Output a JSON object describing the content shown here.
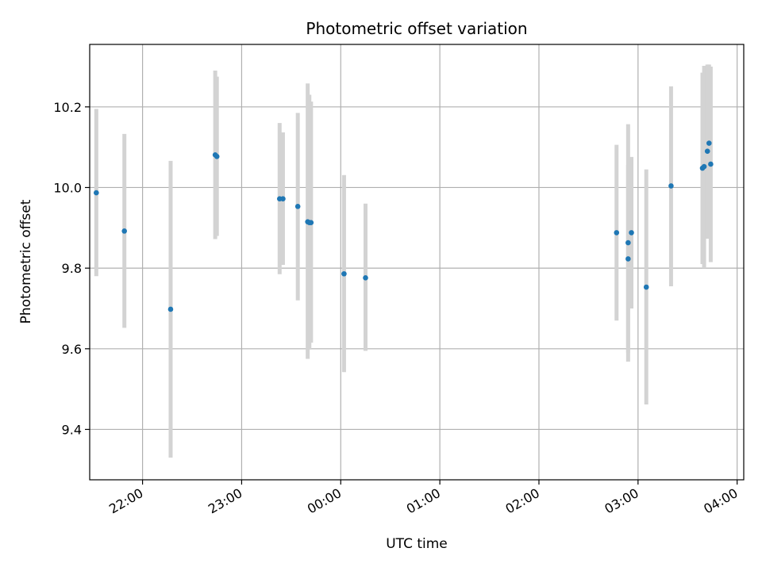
{
  "chart_data": {
    "type": "scatter",
    "title": "Photometric offset variation",
    "xlabel": "UTC time",
    "ylabel": "Photometric offset",
    "xlim": [
      "21:28",
      "04:04"
    ],
    "ylim": [
      9.275,
      10.355
    ],
    "grid": true,
    "colors": {
      "point": "#1f77b4",
      "errorbar": "#d3d3d3",
      "grid": "#b0b0b0"
    },
    "x_ticks": [
      "22:00",
      "23:00",
      "00:00",
      "01:00",
      "02:00",
      "03:00",
      "04:00"
    ],
    "y_ticks": [
      "9.4",
      "9.6",
      "9.8",
      "10.0",
      "10.2"
    ],
    "points": [
      {
        "t": "21:32",
        "y": 9.987,
        "lo": 9.78,
        "hi": 10.195
      },
      {
        "t": "21:49",
        "y": 9.892,
        "lo": 9.652,
        "hi": 10.133
      },
      {
        "t": "22:17",
        "y": 9.698,
        "lo": 9.33,
        "hi": 10.066
      },
      {
        "t": "22:44",
        "y": 10.081,
        "lo": 9.872,
        "hi": 10.29
      },
      {
        "t": "22:45",
        "y": 10.077,
        "lo": 9.88,
        "hi": 10.275
      },
      {
        "t": "23:23",
        "y": 9.972,
        "lo": 9.785,
        "hi": 10.16
      },
      {
        "t": "23:25",
        "y": 9.972,
        "lo": 9.808,
        "hi": 10.137
      },
      {
        "t": "23:34",
        "y": 9.953,
        "lo": 9.72,
        "hi": 10.185
      },
      {
        "t": "23:40",
        "y": 9.915,
        "lo": 9.575,
        "hi": 10.258
      },
      {
        "t": "23:41",
        "y": 9.913,
        "lo": 9.598,
        "hi": 10.23
      },
      {
        "t": "23:42",
        "y": 9.913,
        "lo": 9.615,
        "hi": 10.213
      },
      {
        "t": "00:02",
        "y": 9.786,
        "lo": 9.542,
        "hi": 10.031
      },
      {
        "t": "00:15",
        "y": 9.776,
        "lo": 9.595,
        "hi": 9.96
      },
      {
        "t": "02:47",
        "y": 9.888,
        "lo": 9.67,
        "hi": 10.106
      },
      {
        "t": "02:54",
        "y": 9.863,
        "lo": 9.568,
        "hi": 10.157
      },
      {
        "t": "02:54",
        "y": 9.823,
        "lo": 9.59,
        "hi": 10.056
      },
      {
        "t": "02:56",
        "y": 9.888,
        "lo": 9.7,
        "hi": 10.076
      },
      {
        "t": "03:05",
        "y": 9.753,
        "lo": 9.462,
        "hi": 10.045
      },
      {
        "t": "03:20",
        "y": 10.004,
        "lo": 9.755,
        "hi": 10.251
      },
      {
        "t": "03:39",
        "y": 10.048,
        "lo": 9.81,
        "hi": 10.285
      },
      {
        "t": "03:40",
        "y": 10.052,
        "lo": 9.8,
        "hi": 10.302
      },
      {
        "t": "03:42",
        "y": 10.09,
        "lo": 9.873,
        "hi": 10.305
      },
      {
        "t": "03:43",
        "y": 10.11,
        "lo": 9.91,
        "hi": 10.305
      },
      {
        "t": "03:44",
        "y": 10.058,
        "lo": 9.815,
        "hi": 10.3
      }
    ]
  }
}
